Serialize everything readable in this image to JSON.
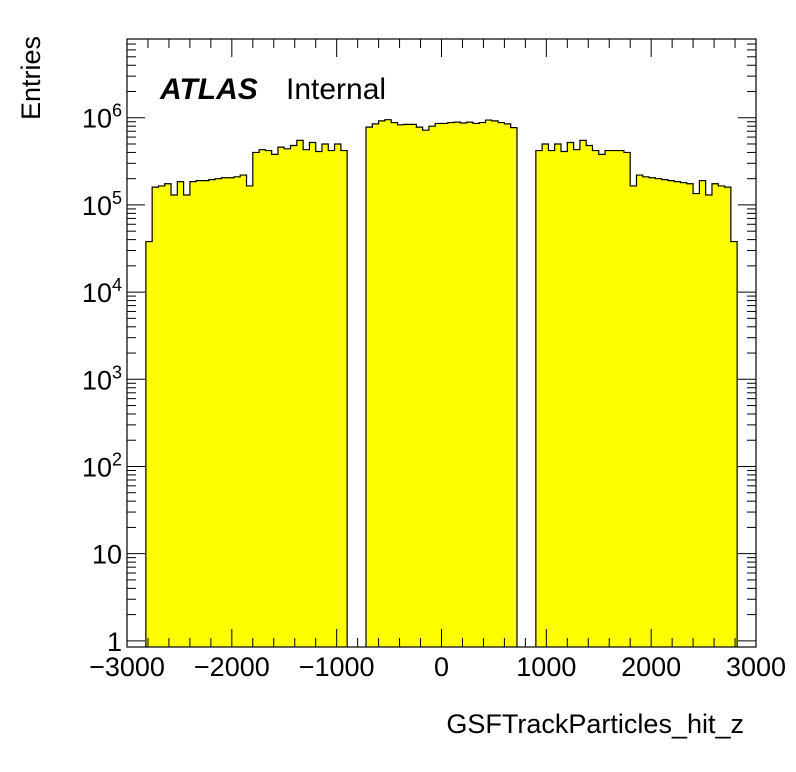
{
  "chart_data": {
    "type": "bar",
    "histogram": true,
    "xlabel": "GSFTrackParticles_hit_z",
    "ylabel": "Entries",
    "xlim": [
      -3000,
      3000
    ],
    "ylim": [
      0.85,
      8000000
    ],
    "yscale": "log",
    "x_ticks": [
      "−3000",
      "−2000",
      "−1000",
      "0",
      "1000",
      "2000",
      "3000"
    ],
    "y_ticks": [
      {
        "base": "1",
        "exp": ""
      },
      {
        "base": "10",
        "exp": ""
      },
      {
        "base": "10",
        "exp": "2"
      },
      {
        "base": "10",
        "exp": "3"
      },
      {
        "base": "10",
        "exp": "4"
      },
      {
        "base": "10",
        "exp": "5"
      },
      {
        "base": "10",
        "exp": "6"
      }
    ],
    "fill_color": "#ffff00",
    "line_color": "#000000",
    "grid": false,
    "legend": "none",
    "label": {
      "atlas": "ATLAS",
      "status": "Internal"
    },
    "bin_width": 60,
    "bins": [
      {
        "x": -2790,
        "y": 38000
      },
      {
        "x": -2730,
        "y": 160000
      },
      {
        "x": -2670,
        "y": 165000
      },
      {
        "x": -2610,
        "y": 175000
      },
      {
        "x": -2550,
        "y": 130000
      },
      {
        "x": -2490,
        "y": 185000
      },
      {
        "x": -2430,
        "y": 130000
      },
      {
        "x": -2370,
        "y": 185000
      },
      {
        "x": -2310,
        "y": 190000
      },
      {
        "x": -2250,
        "y": 190000
      },
      {
        "x": -2190,
        "y": 195000
      },
      {
        "x": -2130,
        "y": 200000
      },
      {
        "x": -2070,
        "y": 205000
      },
      {
        "x": -2010,
        "y": 205000
      },
      {
        "x": -1950,
        "y": 210000
      },
      {
        "x": -1890,
        "y": 220000
      },
      {
        "x": -1830,
        "y": 165000
      },
      {
        "x": -1770,
        "y": 400000
      },
      {
        "x": -1710,
        "y": 430000
      },
      {
        "x": -1650,
        "y": 420000
      },
      {
        "x": -1590,
        "y": 380000
      },
      {
        "x": -1530,
        "y": 460000
      },
      {
        "x": -1470,
        "y": 440000
      },
      {
        "x": -1410,
        "y": 480000
      },
      {
        "x": -1350,
        "y": 550000
      },
      {
        "x": -1290,
        "y": 430000
      },
      {
        "x": -1230,
        "y": 520000
      },
      {
        "x": -1170,
        "y": 410000
      },
      {
        "x": -1110,
        "y": 500000
      },
      {
        "x": -1050,
        "y": 420000
      },
      {
        "x": -990,
        "y": 500000
      },
      {
        "x": -930,
        "y": 420000
      },
      {
        "x": -690,
        "y": 780000
      },
      {
        "x": -630,
        "y": 850000
      },
      {
        "x": -570,
        "y": 920000
      },
      {
        "x": -510,
        "y": 950000
      },
      {
        "x": -450,
        "y": 880000
      },
      {
        "x": -390,
        "y": 830000
      },
      {
        "x": -330,
        "y": 840000
      },
      {
        "x": -270,
        "y": 840000
      },
      {
        "x": -210,
        "y": 780000
      },
      {
        "x": -150,
        "y": 720000
      },
      {
        "x": -90,
        "y": 800000
      },
      {
        "x": -30,
        "y": 860000
      },
      {
        "x": 30,
        "y": 860000
      },
      {
        "x": 90,
        "y": 880000
      },
      {
        "x": 150,
        "y": 890000
      },
      {
        "x": 210,
        "y": 870000
      },
      {
        "x": 270,
        "y": 890000
      },
      {
        "x": 330,
        "y": 860000
      },
      {
        "x": 390,
        "y": 880000
      },
      {
        "x": 450,
        "y": 940000
      },
      {
        "x": 510,
        "y": 920000
      },
      {
        "x": 570,
        "y": 880000
      },
      {
        "x": 630,
        "y": 850000
      },
      {
        "x": 690,
        "y": 770000
      },
      {
        "x": 930,
        "y": 420000
      },
      {
        "x": 990,
        "y": 500000
      },
      {
        "x": 1050,
        "y": 420000
      },
      {
        "x": 1110,
        "y": 500000
      },
      {
        "x": 1170,
        "y": 410000
      },
      {
        "x": 1230,
        "y": 520000
      },
      {
        "x": 1290,
        "y": 430000
      },
      {
        "x": 1350,
        "y": 550000
      },
      {
        "x": 1410,
        "y": 480000
      },
      {
        "x": 1470,
        "y": 420000
      },
      {
        "x": 1530,
        "y": 380000
      },
      {
        "x": 1590,
        "y": 420000
      },
      {
        "x": 1650,
        "y": 420000
      },
      {
        "x": 1710,
        "y": 420000
      },
      {
        "x": 1770,
        "y": 400000
      },
      {
        "x": 1830,
        "y": 165000
      },
      {
        "x": 1890,
        "y": 220000
      },
      {
        "x": 1950,
        "y": 210000
      },
      {
        "x": 2010,
        "y": 205000
      },
      {
        "x": 2070,
        "y": 200000
      },
      {
        "x": 2130,
        "y": 195000
      },
      {
        "x": 2190,
        "y": 190000
      },
      {
        "x": 2250,
        "y": 185000
      },
      {
        "x": 2310,
        "y": 180000
      },
      {
        "x": 2370,
        "y": 175000
      },
      {
        "x": 2430,
        "y": 135000
      },
      {
        "x": 2490,
        "y": 190000
      },
      {
        "x": 2550,
        "y": 130000
      },
      {
        "x": 2610,
        "y": 175000
      },
      {
        "x": 2670,
        "y": 165000
      },
      {
        "x": 2730,
        "y": 160000
      },
      {
        "x": 2790,
        "y": 38000
      }
    ]
  }
}
